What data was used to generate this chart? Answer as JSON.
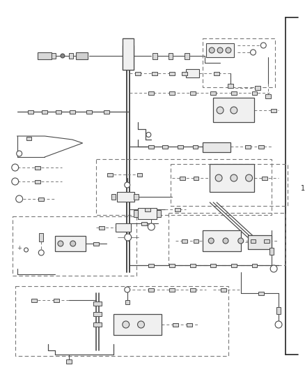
{
  "bg_color": "#ffffff",
  "line_color": "#4a4a4a",
  "dashed_color": "#777777",
  "border_color": "#222222",
  "fig_width": 4.38,
  "fig_height": 5.33,
  "dpi": 100,
  "right_bracket_label": "1"
}
